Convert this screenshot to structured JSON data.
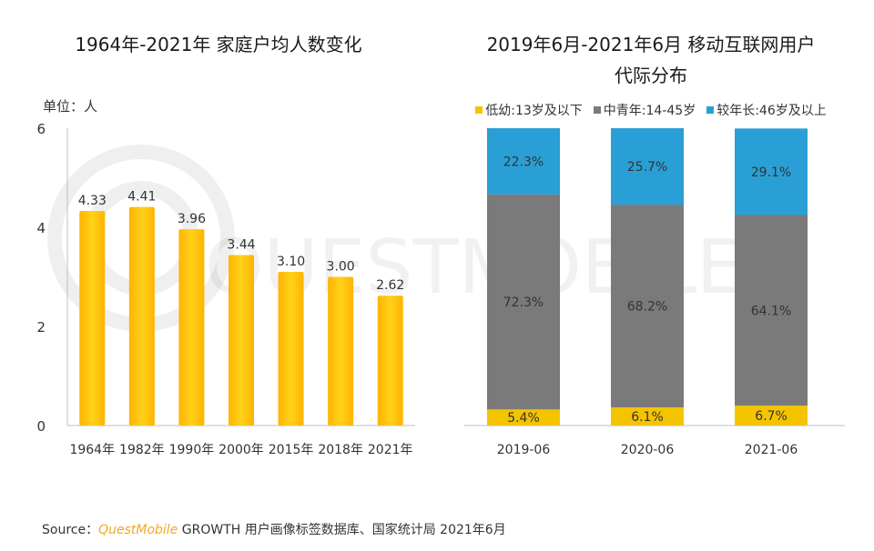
{
  "left_chart": {
    "title": "1964年-2021年 家庭户均人数变化",
    "unit_label": "单位：人"
  },
  "right_chart": {
    "title_line1": "2019年6月-2021年6月 移动互联网用户",
    "title_line2": "代际分布"
  },
  "legend": [
    {
      "label": "低幼:13岁及以下",
      "color": "#f5c400"
    },
    {
      "label": "中青年:14-45岁",
      "color": "#7a7a7a"
    },
    {
      "label": "较年长:46岁及以上",
      "color": "#2a9fd6"
    }
  ],
  "source": {
    "prefix": "Source：",
    "brand": "QuestMobile",
    "text": " GROWTH 用户画像标签数据库、国家统计局 2021年6月"
  },
  "watermark": "QUESTMOBILE",
  "chart_data": [
    {
      "type": "bar",
      "title": "1964年-2021年 家庭户均人数变化",
      "ylabel": "单位：人",
      "categories": [
        "1964年",
        "1982年",
        "1990年",
        "2000年",
        "2015年",
        "2018年",
        "2021年"
      ],
      "values": [
        4.33,
        4.41,
        3.96,
        3.44,
        3.1,
        3.0,
        2.62
      ],
      "value_labels": [
        "4.33",
        "4.41",
        "3.96",
        "3.44",
        "3.10",
        "3.00",
        "2.62"
      ],
      "ylim": [
        0,
        6
      ],
      "yticks": [
        0,
        2,
        4,
        6
      ],
      "bar_color": "#ffc20e",
      "grid": false
    },
    {
      "type": "bar",
      "stacked": true,
      "title": "2019年6月-2021年6月 移动互联网用户代际分布",
      "categories": [
        "2019-06",
        "2020-06",
        "2021-06"
      ],
      "series": [
        {
          "name": "低幼:13岁及以下",
          "values": [
            5.4,
            6.1,
            6.7
          ],
          "labels": [
            "5.4%",
            "6.1%",
            "6.7%"
          ],
          "color": "#f5c400"
        },
        {
          "name": "中青年:14-45岁",
          "values": [
            72.3,
            68.2,
            64.1
          ],
          "labels": [
            "72.3%",
            "68.2%",
            "64.1%"
          ],
          "color": "#7a7a7a"
        },
        {
          "name": "较年长:46岁及以上",
          "values": [
            22.3,
            25.7,
            29.1
          ],
          "labels": [
            "22.3%",
            "25.7%",
            "29.1%"
          ],
          "color": "#2a9fd6"
        }
      ],
      "ylim": [
        0,
        100
      ],
      "legend_position": "top",
      "grid": false
    }
  ]
}
